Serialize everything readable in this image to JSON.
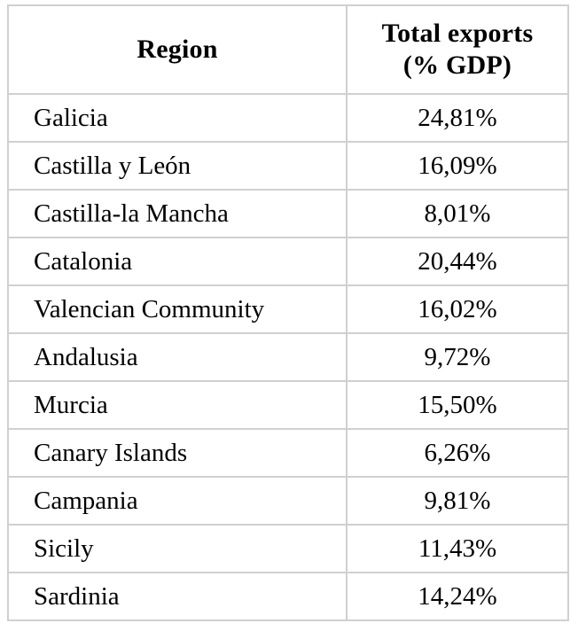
{
  "chart_data": {
    "type": "table",
    "title": "",
    "columns": [
      "Region",
      "Total exports (% GDP)"
    ],
    "header": {
      "col1": "Region",
      "col2": "Total exports\n(% GDP)"
    },
    "rows": [
      {
        "region": "Galicia",
        "display_value": "24,81%",
        "value_pct": 24.81
      },
      {
        "region": "Castilla y León",
        "display_value": "16,09%",
        "value_pct": 16.09
      },
      {
        "region": "Castilla-la Mancha",
        "display_value": "8,01%",
        "value_pct": 8.01
      },
      {
        "region": "Catalonia",
        "display_value": "20,44%",
        "value_pct": 20.44
      },
      {
        "region": "Valencian Community",
        "display_value": "16,02%",
        "value_pct": 16.02
      },
      {
        "region": "Andalusia",
        "display_value": "9,72%",
        "value_pct": 9.72
      },
      {
        "region": "Murcia",
        "display_value": "15,50%",
        "value_pct": 15.5
      },
      {
        "region": "Canary Islands",
        "display_value": "6,26%",
        "value_pct": 6.26
      },
      {
        "region": "Campania",
        "display_value": "9,81%",
        "value_pct": 9.81
      },
      {
        "region": "Sicily",
        "display_value": "11,43%",
        "value_pct": 11.43
      },
      {
        "region": "Sardinia",
        "display_value": "14,24%",
        "value_pct": 14.24
      }
    ],
    "layout_hints": {
      "decimal_separator": "comma",
      "region_column_align": "left",
      "value_column_align": "center",
      "grid": true
    }
  },
  "colors": {
    "border": "#d0d0d0",
    "text": "#000000",
    "background": "#ffffff"
  }
}
